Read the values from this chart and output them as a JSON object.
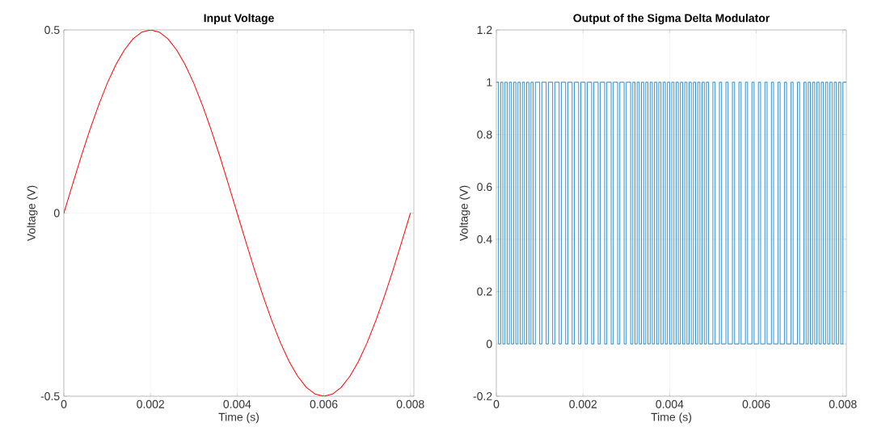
{
  "chart_data": [
    {
      "type": "line",
      "title": "Input Voltage",
      "xlabel": "Time (s)",
      "ylabel": "Voltage (V)",
      "x": [
        0,
        0.0002,
        0.0004,
        0.0006,
        0.0008,
        0.001,
        0.0012,
        0.0014,
        0.0016,
        0.0018,
        0.002,
        0.0022,
        0.0024,
        0.0026,
        0.0028,
        0.003,
        0.0032,
        0.0034,
        0.0036,
        0.0038,
        0.004,
        0.0042,
        0.0044,
        0.0046,
        0.0048,
        0.005,
        0.0052,
        0.0054,
        0.0056,
        0.0058,
        0.006,
        0.0062,
        0.0064,
        0.0066,
        0.0068,
        0.007,
        0.0072,
        0.0074,
        0.0076,
        0.0078,
        0.008
      ],
      "series": [
        {
          "color": "#ff0000",
          "values": [
            0,
            0.078,
            0.155,
            0.227,
            0.294,
            0.354,
            0.405,
            0.446,
            0.476,
            0.494,
            0.5,
            0.494,
            0.476,
            0.446,
            0.405,
            0.354,
            0.294,
            0.227,
            0.155,
            0.078,
            0,
            -0.078,
            -0.155,
            -0.227,
            -0.294,
            -0.354,
            -0.405,
            -0.446,
            -0.476,
            -0.494,
            -0.5,
            -0.494,
            -0.476,
            -0.446,
            -0.405,
            -0.354,
            -0.294,
            -0.227,
            -0.155,
            -0.078,
            0
          ]
        }
      ],
      "xlim": [
        0,
        0.00808
      ],
      "ylim": [
        -0.5,
        0.5
      ],
      "xticks": [
        0,
        0.002,
        0.004,
        0.006,
        0.008
      ],
      "yticks": [
        -0.5,
        0,
        0.5
      ],
      "grid": true
    },
    {
      "type": "step",
      "title": "Output of the Sigma Delta Modulator",
      "xlabel": "Time (s)",
      "ylabel": "Voltage (V)",
      "x": [
        0,
        5e-05,
        0.0001,
        0.00015,
        0.0002,
        0.00025,
        0.0003,
        0.00035,
        0.0004,
        0.00045,
        0.0005,
        0.00055,
        0.0006,
        0.00065,
        0.0007,
        0.00075,
        0.0008,
        0.00085,
        0.0009,
        0.00095,
        0.001,
        0.00105,
        0.0011,
        0.00115,
        0.0012,
        0.00125,
        0.0013,
        0.00135,
        0.0014,
        0.00145,
        0.0015,
        0.00155,
        0.0016,
        0.00165,
        0.0017,
        0.00175,
        0.0018,
        0.00185,
        0.0019,
        0.00195,
        0.002,
        0.00205,
        0.0021,
        0.00215,
        0.0022,
        0.00225,
        0.0023,
        0.00235,
        0.0024,
        0.00245,
        0.0025,
        0.00255,
        0.0026,
        0.00265,
        0.0027,
        0.00275,
        0.0028,
        0.00285,
        0.0029,
        0.00295,
        0.003,
        0.00305,
        0.0031,
        0.00315,
        0.0032,
        0.00325,
        0.0033,
        0.00335,
        0.0034,
        0.00345,
        0.0035,
        0.00355,
        0.0036,
        0.00365,
        0.0037,
        0.00375,
        0.0038,
        0.00385,
        0.0039,
        0.00395,
        0.004,
        0.00405,
        0.0041,
        0.00415,
        0.0042,
        0.00425,
        0.0043,
        0.00435,
        0.0044,
        0.00445,
        0.0045,
        0.00455,
        0.0046,
        0.00465,
        0.0047,
        0.00475,
        0.0048,
        0.00485,
        0.0049,
        0.00495,
        0.005,
        0.00505,
        0.0051,
        0.00515,
        0.0052,
        0.00525,
        0.0053,
        0.00535,
        0.0054,
        0.00545,
        0.0055,
        0.00555,
        0.0056,
        0.00565,
        0.0057,
        0.00575,
        0.0058,
        0.00585,
        0.0059,
        0.00595,
        0.006,
        0.00605,
        0.0061,
        0.00615,
        0.0062,
        0.00625,
        0.0063,
        0.00635,
        0.0064,
        0.00645,
        0.0065,
        0.00655,
        0.0066,
        0.00665,
        0.0067,
        0.00675,
        0.0068,
        0.00685,
        0.0069,
        0.00695,
        0.007,
        0.00705,
        0.0071,
        0.00715,
        0.0072,
        0.00725,
        0.0073,
        0.00735,
        0.0074,
        0.00745,
        0.0075,
        0.00755,
        0.0076,
        0.00765,
        0.0077,
        0.00775,
        0.0078,
        0.00785,
        0.0079,
        0.00795,
        0.008,
        0.00808
      ],
      "series": [
        {
          "color": "#0072bd",
          "values": [
            1,
            0,
            1,
            0,
            1,
            0,
            1,
            0,
            1,
            0,
            1,
            0,
            1,
            0,
            1,
            0,
            1,
            0,
            1,
            1,
            0,
            1,
            1,
            0,
            1,
            1,
            0,
            1,
            1,
            0,
            1,
            1,
            0,
            1,
            1,
            0,
            1,
            1,
            0,
            1,
            1,
            0,
            1,
            1,
            0,
            1,
            1,
            0,
            1,
            1,
            0,
            1,
            1,
            0,
            1,
            1,
            0,
            1,
            1,
            0,
            1,
            1,
            0,
            1,
            0,
            1,
            0,
            1,
            0,
            1,
            0,
            1,
            0,
            1,
            0,
            1,
            0,
            1,
            0,
            1,
            0,
            1,
            0,
            1,
            0,
            1,
            0,
            1,
            0,
            1,
            0,
            1,
            0,
            1,
            0,
            1,
            0,
            1,
            0,
            0,
            1,
            0,
            0,
            1,
            0,
            0,
            1,
            0,
            0,
            1,
            0,
            0,
            1,
            0,
            0,
            1,
            0,
            0,
            1,
            0,
            0,
            1,
            0,
            0,
            1,
            0,
            0,
            1,
            0,
            0,
            1,
            0,
            0,
            1,
            0,
            0,
            1,
            0,
            0,
            1,
            0,
            0,
            1,
            0,
            1,
            0,
            1,
            0,
            1,
            0,
            1,
            0,
            1,
            0,
            1,
            0,
            1,
            0,
            1,
            0,
            1,
            1
          ]
        }
      ],
      "xlim": [
        0,
        0.00808
      ],
      "ylim": [
        -0.2,
        1.2
      ],
      "xticks": [
        0,
        0.002,
        0.004,
        0.006,
        0.008
      ],
      "yticks": [
        -0.2,
        0,
        0.2,
        0.4,
        0.6,
        0.8,
        1,
        1.2
      ],
      "grid": true
    }
  ]
}
